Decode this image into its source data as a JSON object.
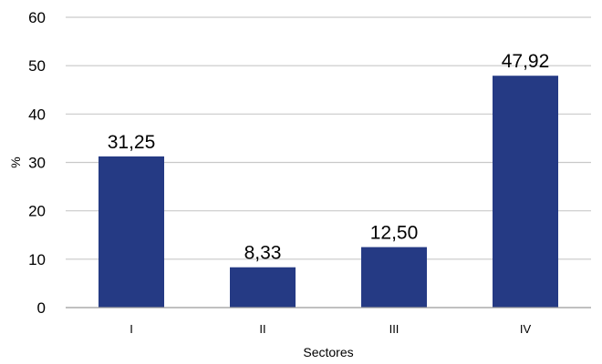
{
  "chart_data": {
    "type": "bar",
    "title": "",
    "xlabel": "Sectores",
    "ylabel": "%",
    "categories": [
      "I",
      "II",
      "III",
      "IV"
    ],
    "values": [
      31.25,
      8.33,
      12.5,
      47.92
    ],
    "data_labels": [
      "31,25",
      "8,33",
      "12,50",
      "47,92"
    ],
    "ylim": [
      0,
      60
    ],
    "yticks": [
      0,
      10,
      20,
      30,
      40,
      50,
      60
    ],
    "grid": true,
    "legend": "none",
    "bar_color": "#253A84",
    "grid_color": "#C9C9C9"
  }
}
